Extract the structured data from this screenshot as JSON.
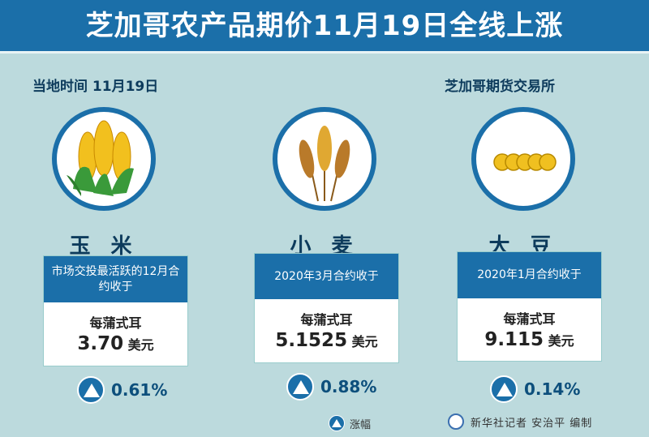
{
  "title": "芝加哥农产品期价11月19日全线上涨",
  "date_label": "当地时间 11月19日",
  "exchange_label": "芝加哥期货交易所",
  "colors": {
    "accent": "#1b6fa9",
    "background": "#bcdadd"
  },
  "items": [
    {
      "name": "玉 米",
      "icon": "corn-icon",
      "contract": "市场交投最活跃的12月合约收于",
      "unit": "每蒲式耳",
      "price": "3.70",
      "currency": "美元",
      "change": "0.61%",
      "direction": "up"
    },
    {
      "name": "小 麦",
      "icon": "wheat-icon",
      "contract": "2020年3月合约收于",
      "unit": "每蒲式耳",
      "price": "5.1525",
      "currency": "美元",
      "change": "0.88%",
      "direction": "up"
    },
    {
      "name": "大 豆",
      "icon": "soybean-icon",
      "contract": "2020年1月合约收于",
      "unit": "每蒲式耳",
      "price": "9.115",
      "currency": "美元",
      "change": "0.14%",
      "direction": "up"
    }
  ],
  "legend": {
    "label": "涨幅",
    "icon": "up-arrow-icon"
  },
  "credit": "新华社记者 安治平 编制"
}
